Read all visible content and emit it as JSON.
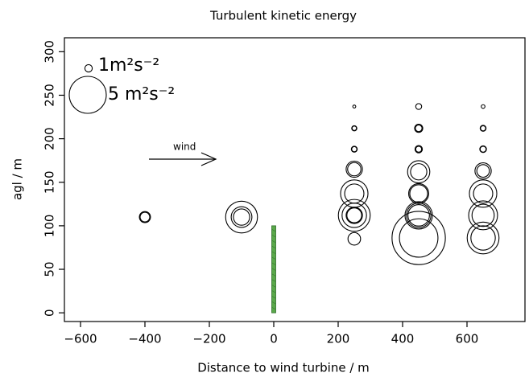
{
  "chart_data": {
    "type": "bubble",
    "title": "Turbulent kinetic energy",
    "xlabel": "Distance to wind turbine / m",
    "ylabel": "agl / m",
    "x": [
      -400,
      -400,
      -100,
      -100,
      -100,
      250,
      250,
      250,
      250,
      250,
      250,
      250,
      250,
      250,
      250,
      250,
      250,
      250,
      250,
      450,
      450,
      450,
      450,
      450,
      450,
      450,
      450,
      450,
      450,
      450,
      450,
      450,
      450,
      650,
      650,
      650,
      650,
      650,
      650,
      650,
      650,
      650,
      650,
      650,
      650,
      650
    ],
    "y": [
      110,
      110,
      110,
      110,
      110,
      237,
      212,
      212,
      188,
      188,
      165,
      165,
      137,
      137,
      112,
      112,
      112,
      112,
      85,
      237,
      212,
      212,
      188,
      188,
      162,
      162,
      137,
      137,
      112,
      112,
      112,
      86,
      86,
      237,
      212,
      212,
      188,
      188,
      163,
      163,
      137,
      137,
      112,
      112,
      86,
      86
    ],
    "sizes": [
      1.3,
      1.5,
      2.2,
      2.8,
      4.3,
      0.4,
      0.6,
      0.7,
      0.7,
      0.8,
      1.8,
      2.2,
      2.6,
      3.7,
      4.3,
      3.3,
      2.2,
      2.0,
      1.7,
      0.8,
      0.9,
      1.1,
      0.8,
      1.0,
      2.2,
      3.0,
      2.4,
      2.7,
      2.9,
      3.3,
      3.7,
      5.2,
      7.2,
      0.5,
      0.7,
      0.8,
      0.8,
      0.9,
      1.7,
      2.2,
      2.6,
      3.7,
      3.0,
      3.9,
      3.3,
      4.3
    ],
    "color": "#000000",
    "size_legend": [
      {
        "size": 1,
        "label": "1m²s⁻²"
      },
      {
        "size": 5,
        "label": "5 m²s⁻²"
      }
    ],
    "annotation": "wind",
    "turbine": {
      "x": 0,
      "height": 100,
      "color": "#5aa84a"
    },
    "xlim": [
      -650,
      780
    ],
    "ylim": [
      -10,
      316
    ],
    "xticks": [
      {
        "value": -600,
        "label": "−600"
      },
      {
        "value": -400,
        "label": "−400"
      },
      {
        "value": -200,
        "label": "−200"
      },
      0,
      200,
      400,
      600
    ],
    "yticks": [
      0,
      50,
      100,
      150,
      200,
      250,
      300
    ]
  }
}
